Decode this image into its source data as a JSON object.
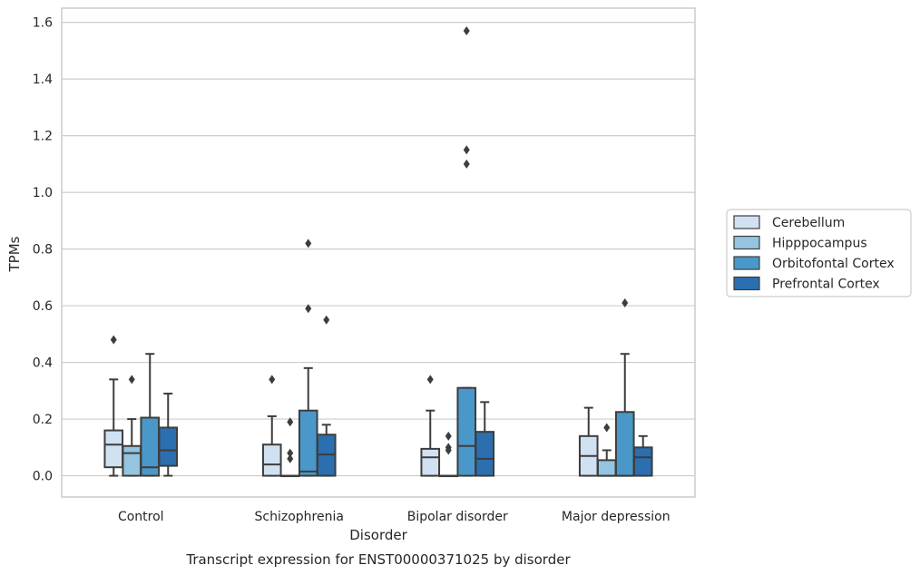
{
  "chart_data": {
    "type": "box",
    "title": "Transcript expression for ENST00000371025 by disorder",
    "xlabel": "Disorder",
    "ylabel": "TPMs",
    "ylim": [
      -0.075,
      1.65
    ],
    "yticks": [
      "0.0",
      "0.2",
      "0.4",
      "0.6",
      "0.8",
      "1.0",
      "1.2",
      "1.4",
      "1.6"
    ],
    "grid": true,
    "legend_position": "right",
    "categories": [
      "Control",
      "Schizophrenia",
      "Bipolar disorder",
      "Major depression"
    ],
    "series": [
      {
        "name": "Cerebellum",
        "color": "#d0e1f2",
        "boxes": [
          {
            "q1": 0.03,
            "median": 0.11,
            "q3": 0.16,
            "whisker_low": 0.0,
            "whisker_high": 0.34,
            "outliers": [
              0.48
            ]
          },
          {
            "q1": 0.0,
            "median": 0.04,
            "q3": 0.11,
            "whisker_low": 0.0,
            "whisker_high": 0.21,
            "outliers": [
              0.34
            ]
          },
          {
            "q1": 0.0,
            "median": 0.065,
            "q3": 0.095,
            "whisker_low": 0.0,
            "whisker_high": 0.23,
            "outliers": [
              0.34
            ]
          },
          {
            "q1": 0.0,
            "median": 0.07,
            "q3": 0.14,
            "whisker_low": 0.0,
            "whisker_high": 0.24,
            "outliers": []
          }
        ]
      },
      {
        "name": "Hipppocampus",
        "color": "#94c4df",
        "boxes": [
          {
            "q1": 0.0,
            "median": 0.08,
            "q3": 0.105,
            "whisker_low": 0.0,
            "whisker_high": 0.2,
            "outliers": [
              0.34
            ]
          },
          {
            "q1": 0.0,
            "median": 0.0,
            "q3": 0.0,
            "whisker_low": 0.0,
            "whisker_high": 0.0,
            "outliers": [
              0.06,
              0.08,
              0.19
            ]
          },
          {
            "q1": 0.0,
            "median": 0.0,
            "q3": 0.0,
            "whisker_low": 0.0,
            "whisker_high": 0.0,
            "outliers": [
              0.09,
              0.1,
              0.14
            ]
          },
          {
            "q1": 0.0,
            "median": 0.0,
            "q3": 0.055,
            "whisker_low": 0.0,
            "whisker_high": 0.09,
            "outliers": [
              0.17
            ]
          }
        ]
      },
      {
        "name": "Orbitofontal Cortex",
        "color": "#4a98c9",
        "boxes": [
          {
            "q1": 0.0,
            "median": 0.03,
            "q3": 0.205,
            "whisker_low": 0.0,
            "whisker_high": 0.43,
            "outliers": []
          },
          {
            "q1": 0.0,
            "median": 0.015,
            "q3": 0.23,
            "whisker_low": 0.0,
            "whisker_high": 0.38,
            "outliers": [
              0.59,
              0.82
            ]
          },
          {
            "q1": 0.0,
            "median": 0.105,
            "q3": 0.31,
            "whisker_low": 0.0,
            "whisker_high": 0.31,
            "outliers": [
              1.1,
              1.15,
              1.57
            ]
          },
          {
            "q1": 0.0,
            "median": 0.0,
            "q3": 0.225,
            "whisker_low": 0.0,
            "whisker_high": 0.43,
            "outliers": [
              0.61
            ]
          }
        ]
      },
      {
        "name": "Prefrontal Cortex",
        "color": "#2b6fb0",
        "boxes": [
          {
            "q1": 0.035,
            "median": 0.09,
            "q3": 0.17,
            "whisker_low": 0.0,
            "whisker_high": 0.29,
            "outliers": []
          },
          {
            "q1": 0.0,
            "median": 0.075,
            "q3": 0.145,
            "whisker_low": 0.0,
            "whisker_high": 0.18,
            "outliers": [
              0.55
            ]
          },
          {
            "q1": 0.0,
            "median": 0.06,
            "q3": 0.155,
            "whisker_low": 0.0,
            "whisker_high": 0.26,
            "outliers": []
          },
          {
            "q1": 0.0,
            "median": 0.065,
            "q3": 0.1,
            "whisker_low": 0.0,
            "whisker_high": 0.14,
            "outliers": []
          }
        ]
      }
    ]
  }
}
